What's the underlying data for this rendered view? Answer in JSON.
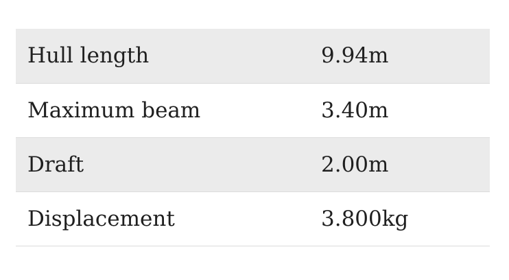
{
  "specs": [
    {
      "label": "Hull length",
      "value": "9.94m"
    },
    {
      "label": "Maximum beam",
      "value": "3.40m"
    },
    {
      "label": "Draft",
      "value": "2.00m"
    },
    {
      "label": "Displacement",
      "value": "3.800kg"
    }
  ]
}
